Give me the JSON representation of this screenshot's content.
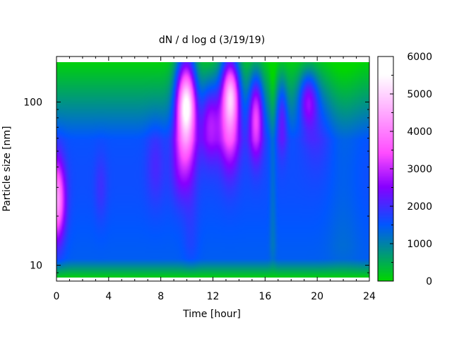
{
  "chart_data": {
    "type": "heatmap",
    "title": "dN / d log d (3/19/19)",
    "xlabel": "Time [hour]",
    "ylabel": "Particle size [nm]",
    "x_range": [
      0,
      24
    ],
    "y_range": [
      8,
      190
    ],
    "y_scale": "log",
    "x_ticks": [
      0,
      4,
      8,
      12,
      16,
      20,
      24
    ],
    "x_tick_labels": [
      "0",
      "4",
      "8",
      "12",
      "16",
      "20",
      "24"
    ],
    "y_ticks": [
      10,
      100
    ],
    "y_tick_labels": [
      "10",
      "100"
    ],
    "colorbar": {
      "range": [
        0,
        6000
      ],
      "ticks": [
        0,
        1000,
        2000,
        3000,
        4000,
        5000,
        6000
      ],
      "tick_labels": [
        "0",
        "1000",
        "2000",
        "3000",
        "4000",
        "5000",
        "6000"
      ],
      "palette": "gnuplot-rgbformulae-30-13-10"
    },
    "background_level": 1600,
    "modes": [
      {
        "time": 0.0,
        "size_nm": 25,
        "peak": 2900,
        "time_width": 0.45,
        "size_width_log10": 0.17
      },
      {
        "time": 3.4,
        "size_nm": 30,
        "peak": 350,
        "time_width": 0.35,
        "size_width_log10": 0.15
      },
      {
        "time": 7.6,
        "size_nm": 42,
        "peak": 450,
        "time_width": 0.5,
        "size_width_log10": 0.18
      },
      {
        "time": 9.4,
        "size_nm": 38,
        "peak": 500,
        "time_width": 0.5,
        "size_width_log10": 0.15
      },
      {
        "time": 9.9,
        "size_nm": 95,
        "peak": 3600,
        "time_width": 0.55,
        "size_width_log10": 0.24
      },
      {
        "time": 10.0,
        "size_nm": 95,
        "peak": 1200,
        "time_width": 0.4,
        "size_width_log10": 0.1
      },
      {
        "time": 11.8,
        "size_nm": 80,
        "peak": 1600,
        "time_width": 0.55,
        "size_width_log10": 0.17
      },
      {
        "time": 13.3,
        "size_nm": 100,
        "peak": 3300,
        "time_width": 0.55,
        "size_width_log10": 0.24
      },
      {
        "time": 13.4,
        "size_nm": 110,
        "peak": 1100,
        "time_width": 0.35,
        "size_width_log10": 0.1
      },
      {
        "time": 15.3,
        "size_nm": 85,
        "peak": 2300,
        "time_width": 0.4,
        "size_width_log10": 0.18
      },
      {
        "time": 17.3,
        "size_nm": 85,
        "peak": 1100,
        "time_width": 0.3,
        "size_width_log10": 0.16
      },
      {
        "time": 19.3,
        "size_nm": 105,
        "peak": 1600,
        "time_width": 0.5,
        "size_width_log10": 0.12
      },
      {
        "time": 20.0,
        "size_nm": 80,
        "peak": 500,
        "time_width": 0.8,
        "size_width_log10": 0.2
      }
    ],
    "vertical_bands": [
      {
        "time": 10.3,
        "amplitude": 250,
        "width": 0.6
      },
      {
        "time": 16.6,
        "amplitude": -350,
        "width": 0.25
      },
      {
        "time": 22.0,
        "amplitude": -200,
        "width": 1.2
      }
    ]
  }
}
